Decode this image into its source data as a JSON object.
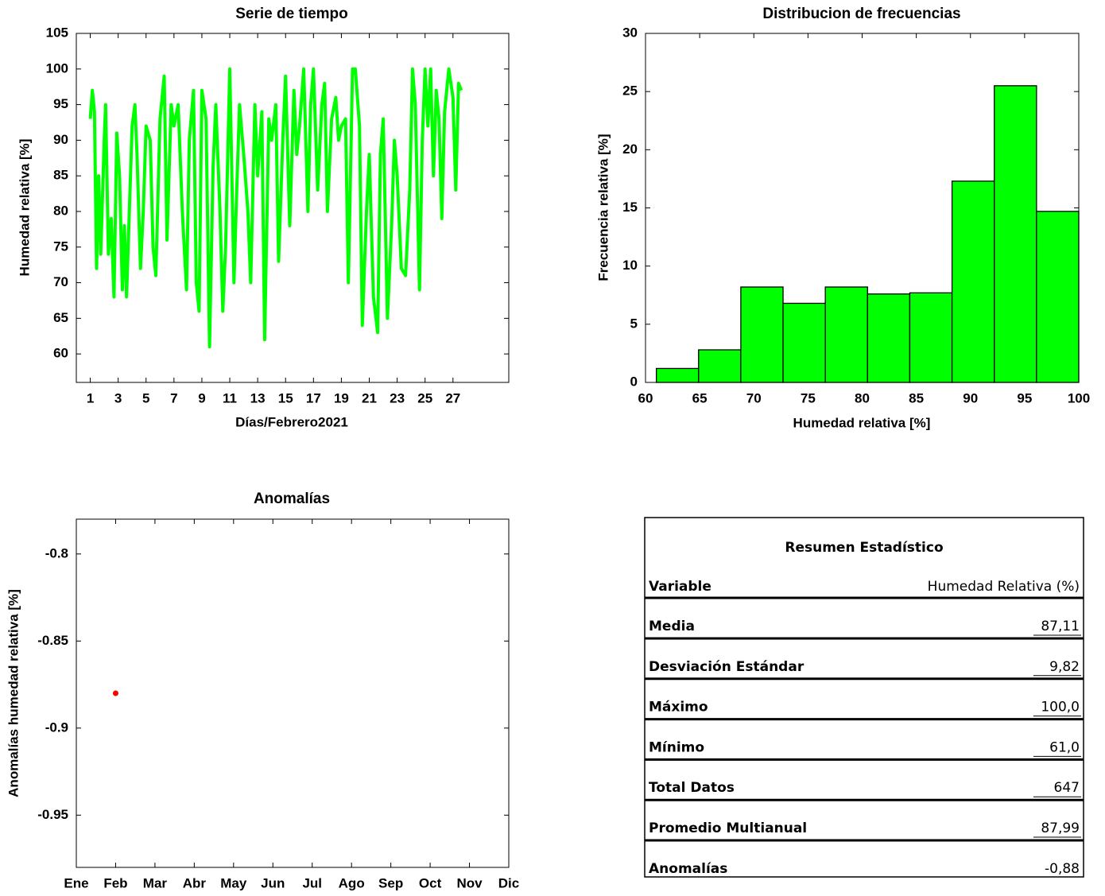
{
  "chart_data": [
    {
      "type": "line",
      "title": "Serie de tiempo",
      "x_label": "Días/Febrero2021",
      "y_label": "Humedad relativa [%]",
      "color": "#00ff00",
      "xlim": [
        0,
        31
      ],
      "xticks": [
        1,
        3,
        5,
        7,
        9,
        11,
        13,
        15,
        17,
        19,
        21,
        23,
        25,
        27
      ],
      "ylim": [
        56,
        105
      ],
      "yticks": [
        60,
        65,
        70,
        75,
        80,
        85,
        90,
        95,
        100,
        105
      ],
      "x": [
        1.0,
        1.15,
        1.3,
        1.45,
        1.6,
        1.75,
        2.0,
        2.1,
        2.3,
        2.5,
        2.7,
        2.9,
        3.1,
        3.3,
        3.45,
        3.6,
        3.8,
        4.0,
        4.2,
        4.35,
        4.6,
        4.8,
        5.0,
        5.3,
        5.5,
        5.7,
        6.0,
        6.3,
        6.5,
        6.8,
        7.0,
        7.3,
        7.6,
        7.9,
        8.1,
        8.4,
        8.6,
        8.8,
        9.0,
        9.3,
        9.55,
        9.8,
        10.0,
        10.3,
        10.5,
        10.7,
        11.0,
        11.3,
        11.5,
        11.7,
        12.0,
        12.3,
        12.5,
        12.8,
        13.0,
        13.3,
        13.5,
        13.8,
        14.0,
        14.3,
        14.5,
        14.8,
        15.0,
        15.3,
        15.6,
        15.8,
        16.0,
        16.3,
        16.6,
        16.8,
        17.0,
        17.3,
        17.6,
        17.8,
        18.0,
        18.3,
        18.6,
        18.8,
        19.0,
        19.3,
        19.5,
        19.8,
        20.0,
        20.3,
        20.5,
        20.8,
        21.0,
        21.3,
        21.6,
        21.8,
        22.0,
        22.3,
        22.6,
        22.8,
        23.0,
        23.3,
        23.6,
        23.9,
        24.1,
        24.3,
        24.6,
        24.8,
        25.0,
        25.2,
        25.4,
        25.6,
        25.8,
        26.0,
        26.2,
        26.4,
        26.7,
        27.0,
        27.2,
        27.4,
        27.6
      ],
      "values": [
        93,
        97,
        94,
        72,
        85,
        74,
        90,
        95,
        74,
        79,
        68,
        91,
        85,
        69,
        78,
        68,
        80,
        92,
        95,
        88,
        72,
        80,
        92,
        90,
        75,
        71,
        93,
        99,
        76,
        95,
        92,
        95,
        80,
        69,
        90,
        97,
        70,
        66,
        97,
        93,
        61,
        86,
        95,
        80,
        66,
        75,
        100,
        70,
        83,
        95,
        88,
        80,
        70,
        95,
        85,
        94,
        62,
        93,
        90,
        95,
        73,
        90,
        99,
        78,
        97,
        88,
        92,
        100,
        80,
        95,
        100,
        83,
        95,
        98,
        80,
        93,
        96,
        90,
        92,
        93,
        70,
        100,
        100,
        92,
        64,
        80,
        88,
        68,
        63,
        88,
        93,
        65,
        78,
        90,
        85,
        72,
        71,
        83,
        100,
        95,
        69,
        90,
        100,
        92,
        100,
        85,
        97,
        93,
        79,
        94,
        100,
        96,
        83,
        98,
        97
      ]
    },
    {
      "type": "histogram",
      "title": "Distribucion de frecuencias",
      "x_label": "Humedad relativa [%]",
      "y_label": "Frecuencia relativa [%]",
      "color": "#00ff00",
      "xlim": [
        60,
        100
      ],
      "xticks": [
        60,
        65,
        70,
        75,
        80,
        85,
        90,
        95,
        100
      ],
      "ylim": [
        0,
        30
      ],
      "yticks": [
        0,
        5,
        10,
        15,
        20,
        25,
        30
      ],
      "bins": [
        61,
        64.9,
        68.8,
        72.7,
        76.6,
        80.5,
        84.4,
        88.3,
        92.2,
        96.1,
        100
      ],
      "values": [
        1.2,
        2.8,
        8.2,
        6.8,
        8.2,
        7.6,
        7.7,
        17.3,
        25.5,
        14.7
      ]
    },
    {
      "type": "scatter",
      "title": "Anomalías",
      "y_label": "Anomalías humedad relativa [%]",
      "color": "#ff0000",
      "categories": [
        "Ene",
        "Feb",
        "Mar",
        "Abr",
        "May",
        "Jun",
        "Jul",
        "Ago",
        "Sep",
        "Oct",
        "Nov",
        "Dic"
      ],
      "values": [
        null,
        -0.88,
        null,
        null,
        null,
        null,
        null,
        null,
        null,
        null,
        null,
        null
      ],
      "ylim": [
        -0.98,
        -0.78
      ],
      "yticks": [
        -0.8,
        -0.85,
        -0.9,
        -0.95
      ]
    }
  ],
  "table": {
    "title": "Resumen Estadístico",
    "header": [
      "Variable",
      "Humedad Relativa (%)"
    ],
    "rows": [
      [
        "Media",
        "87,11"
      ],
      [
        "Desviación Estándar",
        "9,82"
      ],
      [
        "Máximo",
        "100,0"
      ],
      [
        "Mínimo",
        "61,0"
      ],
      [
        "Total Datos",
        "647"
      ],
      [
        "Promedio Multianual",
        "87,99"
      ],
      [
        "Anomalías",
        "-0,88"
      ]
    ]
  }
}
